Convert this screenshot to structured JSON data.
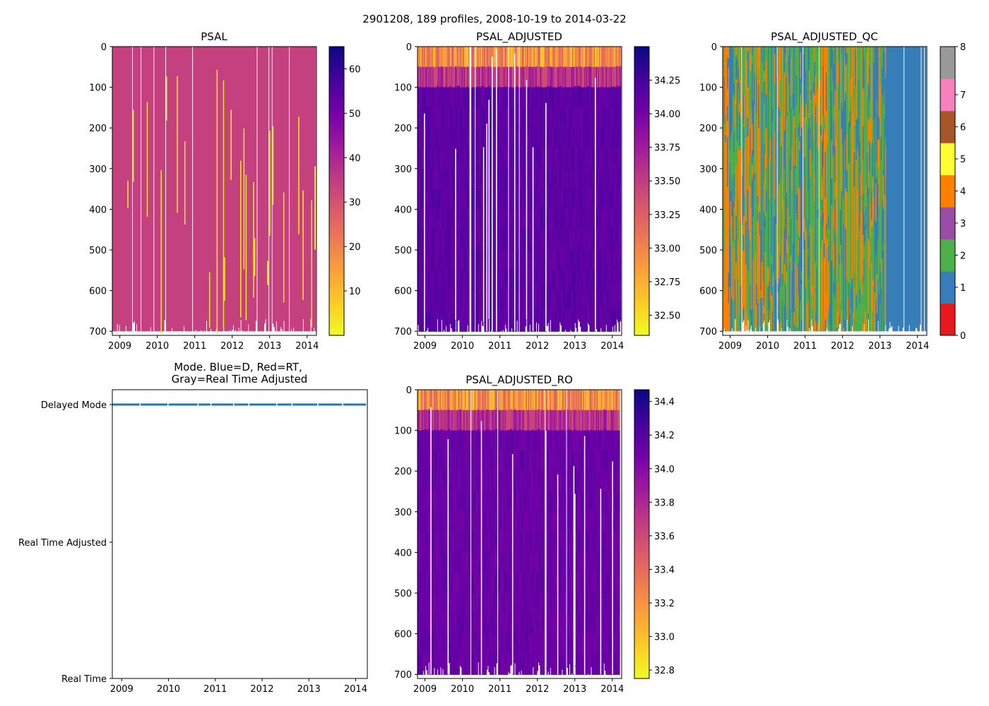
{
  "figure": {
    "suptitle": "2901208, 189 profiles, 2008-10-19 to 2014-03-22"
  },
  "colors": {
    "plasma": [
      "#0d0887",
      "#46039f",
      "#7201a8",
      "#9c179e",
      "#bd3786",
      "#d8576b",
      "#ed7953",
      "#fb9f3a",
      "#fdca26",
      "#f0f921"
    ],
    "qc": [
      "#e41a1c",
      "#377eb8",
      "#4daf4a",
      "#984ea3",
      "#ff7f00",
      "#ffff33",
      "#a65628",
      "#f781bf",
      "#999999"
    ],
    "mode_line": "#1f77b4"
  },
  "chart_data": [
    {
      "id": "psal",
      "type": "heatmap",
      "title": "PSAL",
      "x_ticks": [
        "2009",
        "2010",
        "2011",
        "2012",
        "2013",
        "2014"
      ],
      "x_range": [
        2008.8,
        2014.25
      ],
      "y_ticks": [
        "0",
        "100",
        "200",
        "300",
        "400",
        "500",
        "600",
        "700"
      ],
      "ylim": [
        710,
        0
      ],
      "colorbar": {
        "range": [
          0,
          65
        ],
        "ticks": [
          "10",
          "20",
          "30",
          "40",
          "50",
          "60"
        ]
      },
      "typical_value": 34,
      "anomaly_value": 1,
      "profiles": 189
    },
    {
      "id": "psal_adjusted",
      "type": "heatmap",
      "title": "PSAL_ADJUSTED",
      "x_ticks": [
        "2009",
        "2010",
        "2011",
        "2012",
        "2013",
        "2014"
      ],
      "x_range": [
        2008.8,
        2014.25
      ],
      "y_ticks": [
        "0",
        "100",
        "200",
        "300",
        "400",
        "500",
        "600",
        "700"
      ],
      "ylim": [
        710,
        0
      ],
      "colorbar": {
        "range": [
          32.35,
          34.5
        ],
        "ticks": [
          "32.50",
          "32.75",
          "33.00",
          "33.25",
          "33.50",
          "33.75",
          "34.00",
          "34.25"
        ]
      },
      "deep_value": 34.1,
      "surface_value": 32.7,
      "profiles": 189
    },
    {
      "id": "psal_adjusted_qc",
      "type": "heatmap",
      "title": "PSAL_ADJUSTED_QC",
      "x_ticks": [
        "2009",
        "2010",
        "2011",
        "2012",
        "2013",
        "2014"
      ],
      "x_range": [
        2008.8,
        2014.25
      ],
      "y_ticks": [
        "0",
        "100",
        "200",
        "300",
        "400",
        "500",
        "600",
        "700"
      ],
      "ylim": [
        710,
        0
      ],
      "colorbar": {
        "categories": [
          "0",
          "1",
          "2",
          "3",
          "4",
          "5",
          "6",
          "7",
          "8"
        ]
      },
      "dominant_flags": [
        1,
        2,
        4
      ],
      "profiles": 189
    },
    {
      "id": "mode",
      "type": "line",
      "title_line1": "Mode. Blue=D, Red=RT,",
      "title_line2": "Gray=Real Time Adjusted",
      "x_ticks": [
        "2009",
        "2010",
        "2011",
        "2012",
        "2013",
        "2014"
      ],
      "x_range": [
        2008.8,
        2014.25
      ],
      "y_labels": [
        "Delayed Mode",
        "Real Time Adjusted",
        "Real Time"
      ],
      "series": [
        {
          "name": "D",
          "value": "Delayed Mode",
          "x_start": 2008.8,
          "x_end": 2014.22
        }
      ]
    },
    {
      "id": "psal_adjusted_ro",
      "type": "heatmap",
      "title": "PSAL_ADJUSTED_RO",
      "x_ticks": [
        "2009",
        "2010",
        "2011",
        "2012",
        "2013",
        "2014"
      ],
      "x_range": [
        2008.8,
        2014.25
      ],
      "y_ticks": [
        "0",
        "100",
        "200",
        "300",
        "400",
        "500",
        "600",
        "700"
      ],
      "ylim": [
        710,
        0
      ],
      "colorbar": {
        "range": [
          32.75,
          34.47
        ],
        "ticks": [
          "32.8",
          "33.0",
          "33.2",
          "33.4",
          "33.6",
          "33.8",
          "34.0",
          "34.2",
          "34.4"
        ]
      },
      "deep_value": 34.05,
      "surface_value": 33.0,
      "profiles": 189
    }
  ]
}
